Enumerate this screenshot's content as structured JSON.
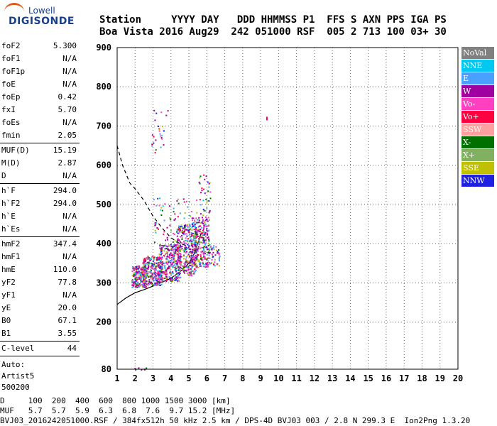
{
  "logo": {
    "top": "Lowell",
    "bottom": "DIGISONDE"
  },
  "header": {
    "line1": "Station     YYYY DAY   DDD HHMMSS P1  FFS S AXN PPS IGA PS",
    "line2": "Boa Vista 2016 Aug29  242 051000 RSF  005 2 713 100 03+ 30"
  },
  "params": {
    "group1": [
      {
        "label": "foF2",
        "value": "5.300"
      },
      {
        "label": "foF1",
        "value": "N/A"
      },
      {
        "label": "foF1p",
        "value": "N/A"
      },
      {
        "label": "foE",
        "value": "N/A"
      },
      {
        "label": "foEp",
        "value": "0.42"
      },
      {
        "label": "fxI",
        "value": "5.70"
      },
      {
        "label": "foEs",
        "value": "N/A"
      },
      {
        "label": "fmin",
        "value": "2.05"
      }
    ],
    "group2": [
      {
        "label": "MUF(D)",
        "value": "15.19"
      },
      {
        "label": "M(D)",
        "value": "2.87"
      },
      {
        "label": "D",
        "value": "N/A"
      }
    ],
    "group3": [
      {
        "label": "h`F",
        "value": "294.0"
      },
      {
        "label": "h`F2",
        "value": "294.0"
      },
      {
        "label": "h`E",
        "value": "N/A"
      },
      {
        "label": "h`Es",
        "value": "N/A"
      }
    ],
    "group4": [
      {
        "label": "hmF2",
        "value": "347.4"
      },
      {
        "label": "hmF1",
        "value": "N/A"
      },
      {
        "label": "hmE",
        "value": "110.0"
      },
      {
        "label": "yF2",
        "value": "77.8"
      },
      {
        "label": "yF1",
        "value": "N/A"
      },
      {
        "label": "yE",
        "value": "20.0"
      },
      {
        "label": "B0",
        "value": "67.1"
      },
      {
        "label": "B1",
        "value": "3.55"
      }
    ],
    "group5": [
      {
        "label": "C-level",
        "value": "44"
      }
    ],
    "auto": [
      "Auto:",
      "Artist5",
      "500200"
    ]
  },
  "legend": [
    {
      "label": "NoVal",
      "color": "#808080"
    },
    {
      "label": "NNE",
      "color": "#00c8f0"
    },
    {
      "label": "E",
      "color": "#4aa0ff"
    },
    {
      "label": "W",
      "color": "#a000a0"
    },
    {
      "label": "Vo-",
      "color": "#ff40c0"
    },
    {
      "label": "Vo+",
      "color": "#ff0040"
    },
    {
      "label": "SSW",
      "color": "#ffa0a0"
    },
    {
      "label": "X-",
      "color": "#007000"
    },
    {
      "label": "X+",
      "color": "#80b060"
    },
    {
      "label": "SSE",
      "color": "#c0c000"
    },
    {
      "label": "NNW",
      "color": "#2020e0"
    }
  ],
  "chart_data": {
    "type": "scatter",
    "xlabel": "",
    "ylabel": "",
    "xlim": [
      1,
      20
    ],
    "ylim": [
      80,
      900
    ],
    "x_ticks": [
      1,
      2,
      3,
      4,
      5,
      6,
      7,
      8,
      9,
      10,
      11,
      12,
      13,
      14,
      15,
      16,
      17,
      18,
      19,
      20
    ],
    "y_ticks": [
      80,
      200,
      300,
      400,
      500,
      600,
      700,
      800,
      900
    ],
    "grid": true,
    "grid_style": "dotted",
    "curves": [
      {
        "name": "",
        "style": "solid",
        "points": [
          [
            1,
            245
          ],
          [
            1.5,
            262
          ],
          [
            2,
            275
          ],
          [
            2.5,
            283
          ],
          [
            3,
            292
          ],
          [
            3.5,
            302
          ],
          [
            4,
            312
          ],
          [
            4.5,
            328
          ],
          [
            5,
            350
          ],
          [
            5.3,
            375
          ],
          [
            5.5,
            400
          ],
          [
            5.7,
            430
          ]
        ]
      },
      {
        "name": "",
        "style": "dashed",
        "points": [
          [
            1,
            650
          ],
          [
            1.3,
            600
          ],
          [
            1.7,
            555
          ],
          [
            2,
            540
          ],
          [
            2.5,
            510
          ],
          [
            3,
            470
          ],
          [
            3.5,
            440
          ],
          [
            4,
            415
          ],
          [
            4.5,
            400
          ],
          [
            4.9,
            395
          ]
        ]
      }
    ],
    "scatter_regions": [
      {
        "x": [
          1.8,
          2.6
        ],
        "y": [
          290,
          345
        ],
        "n": 250
      },
      {
        "x": [
          2.4,
          3.5
        ],
        "y": [
          295,
          370
        ],
        "n": 300
      },
      {
        "x": [
          3.3,
          4.5
        ],
        "y": [
          305,
          400
        ],
        "n": 320
      },
      {
        "x": [
          4.3,
          5.4
        ],
        "y": [
          320,
          450
        ],
        "n": 320
      },
      {
        "x": [
          5.1,
          6.1
        ],
        "y": [
          340,
          470
        ],
        "n": 280
      },
      {
        "x": [
          5.9,
          6.7
        ],
        "y": [
          345,
          400
        ],
        "n": 60
      },
      {
        "x": [
          3.0,
          6.0
        ],
        "y": [
          400,
          520
        ],
        "n": 90
      },
      {
        "x": [
          5.5,
          6.2
        ],
        "y": [
          480,
          580
        ],
        "n": 30
      },
      {
        "x": [
          2.9,
          3.7
        ],
        "y": [
          630,
          720
        ],
        "n": 22
      },
      {
        "x": [
          3.0,
          3.9
        ],
        "y": [
          720,
          760
        ],
        "n": 5
      },
      {
        "x": [
          1.9,
          2.6
        ],
        "y": [
          80,
          85
        ],
        "n": 8
      }
    ],
    "isolated_points": [
      {
        "x": 9.35,
        "y": 720,
        "color": "#ff0040"
      }
    ]
  },
  "footer": {
    "line1": "D     100  200  400  600  800 1000 1500 3000 [km]",
    "line2": "MUF   5.7  5.7  5.9  6.3  6.8  7.6  9.7 15.2 [MHz]",
    "line3": "BVJ03_2016242051000.RSF / 384fx512h 50 kHz 2.5 km / DPS-4D BVJ03 003 / 2.8 N 299.3 E  Ion2Png 1.3.20"
  }
}
